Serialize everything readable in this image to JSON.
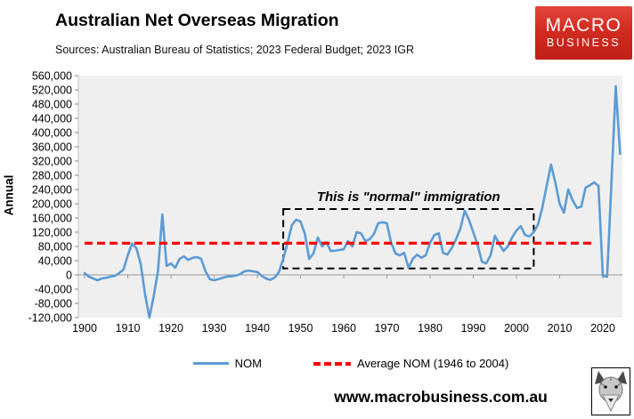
{
  "header": {
    "title": "Australian Net Overseas Migration",
    "subtitle": "Sources: Australian Bureau of Statistics; 2023 Federal Budget; 2023 IGR",
    "logo": {
      "line1": "MACRO",
      "line2": "BUSINESS",
      "background_color": "#cf2418",
      "text_color": "#ffffff"
    }
  },
  "footer": {
    "url": "www.macrobusiness.com.au"
  },
  "chart_data": {
    "type": "line",
    "title": "Australian Net Overseas Migration",
    "ylabel": "Annual",
    "ylim": [
      -120000,
      560000
    ],
    "ytick_step": 40000,
    "xlim": [
      1900,
      2025
    ],
    "xticks": [
      1900,
      1910,
      1920,
      1930,
      1940,
      1950,
      1960,
      1970,
      1980,
      1990,
      2000,
      2010,
      2020
    ],
    "grid": false,
    "plot_background": "#efefef",
    "legend_position": "bottom",
    "series": [
      {
        "name": "NOM",
        "color": "#5B9BD5",
        "style": "solid",
        "x_start": 1900,
        "x_step": 1,
        "values": [
          5000,
          -5000,
          -10000,
          -15000,
          -10000,
          -8000,
          -5000,
          -3000,
          5000,
          15000,
          55000,
          88000,
          75000,
          30000,
          -55000,
          -120000,
          -60000,
          10000,
          170000,
          25000,
          32000,
          20000,
          45000,
          52000,
          42000,
          48000,
          50000,
          45000,
          10000,
          -12000,
          -15000,
          -12000,
          -8000,
          -5000,
          -4000,
          -2000,
          2000,
          10000,
          12000,
          10000,
          8000,
          -3000,
          -10000,
          -14000,
          -8000,
          8000,
          45000,
          90000,
          140000,
          155000,
          150000,
          115000,
          45000,
          60000,
          105000,
          80000,
          92000,
          67000,
          68000,
          70000,
          72000,
          95000,
          80000,
          120000,
          117000,
          95000,
          100000,
          115000,
          145000,
          148000,
          145000,
          90000,
          60000,
          55000,
          62000,
          20000,
          45000,
          57000,
          48000,
          55000,
          90000,
          112000,
          117000,
          62000,
          57000,
          75000,
          100000,
          130000,
          180000,
          155000,
          120000,
          85000,
          37000,
          32000,
          55000,
          110000,
          87000,
          67000,
          80000,
          105000,
          125000,
          137000,
          112000,
          108000,
          120000,
          142000,
          190000,
          250000,
          310000,
          260000,
          200000,
          175000,
          240000,
          210000,
          188000,
          192000,
          245000,
          252000,
          260000,
          250000,
          -3000,
          -5000,
          260000,
          530000,
          340000
        ]
      },
      {
        "name": "Average NOM (1946 to 2004)",
        "color": "#FF0000",
        "style": "dashed",
        "value": 89000,
        "x_start": 1900,
        "x_end": 2018
      }
    ],
    "annotation": {
      "text": "This is \"normal\" immigration",
      "box": {
        "x1": 1946,
        "x2": 2004,
        "y1": 18000,
        "y2": 185000
      }
    }
  }
}
